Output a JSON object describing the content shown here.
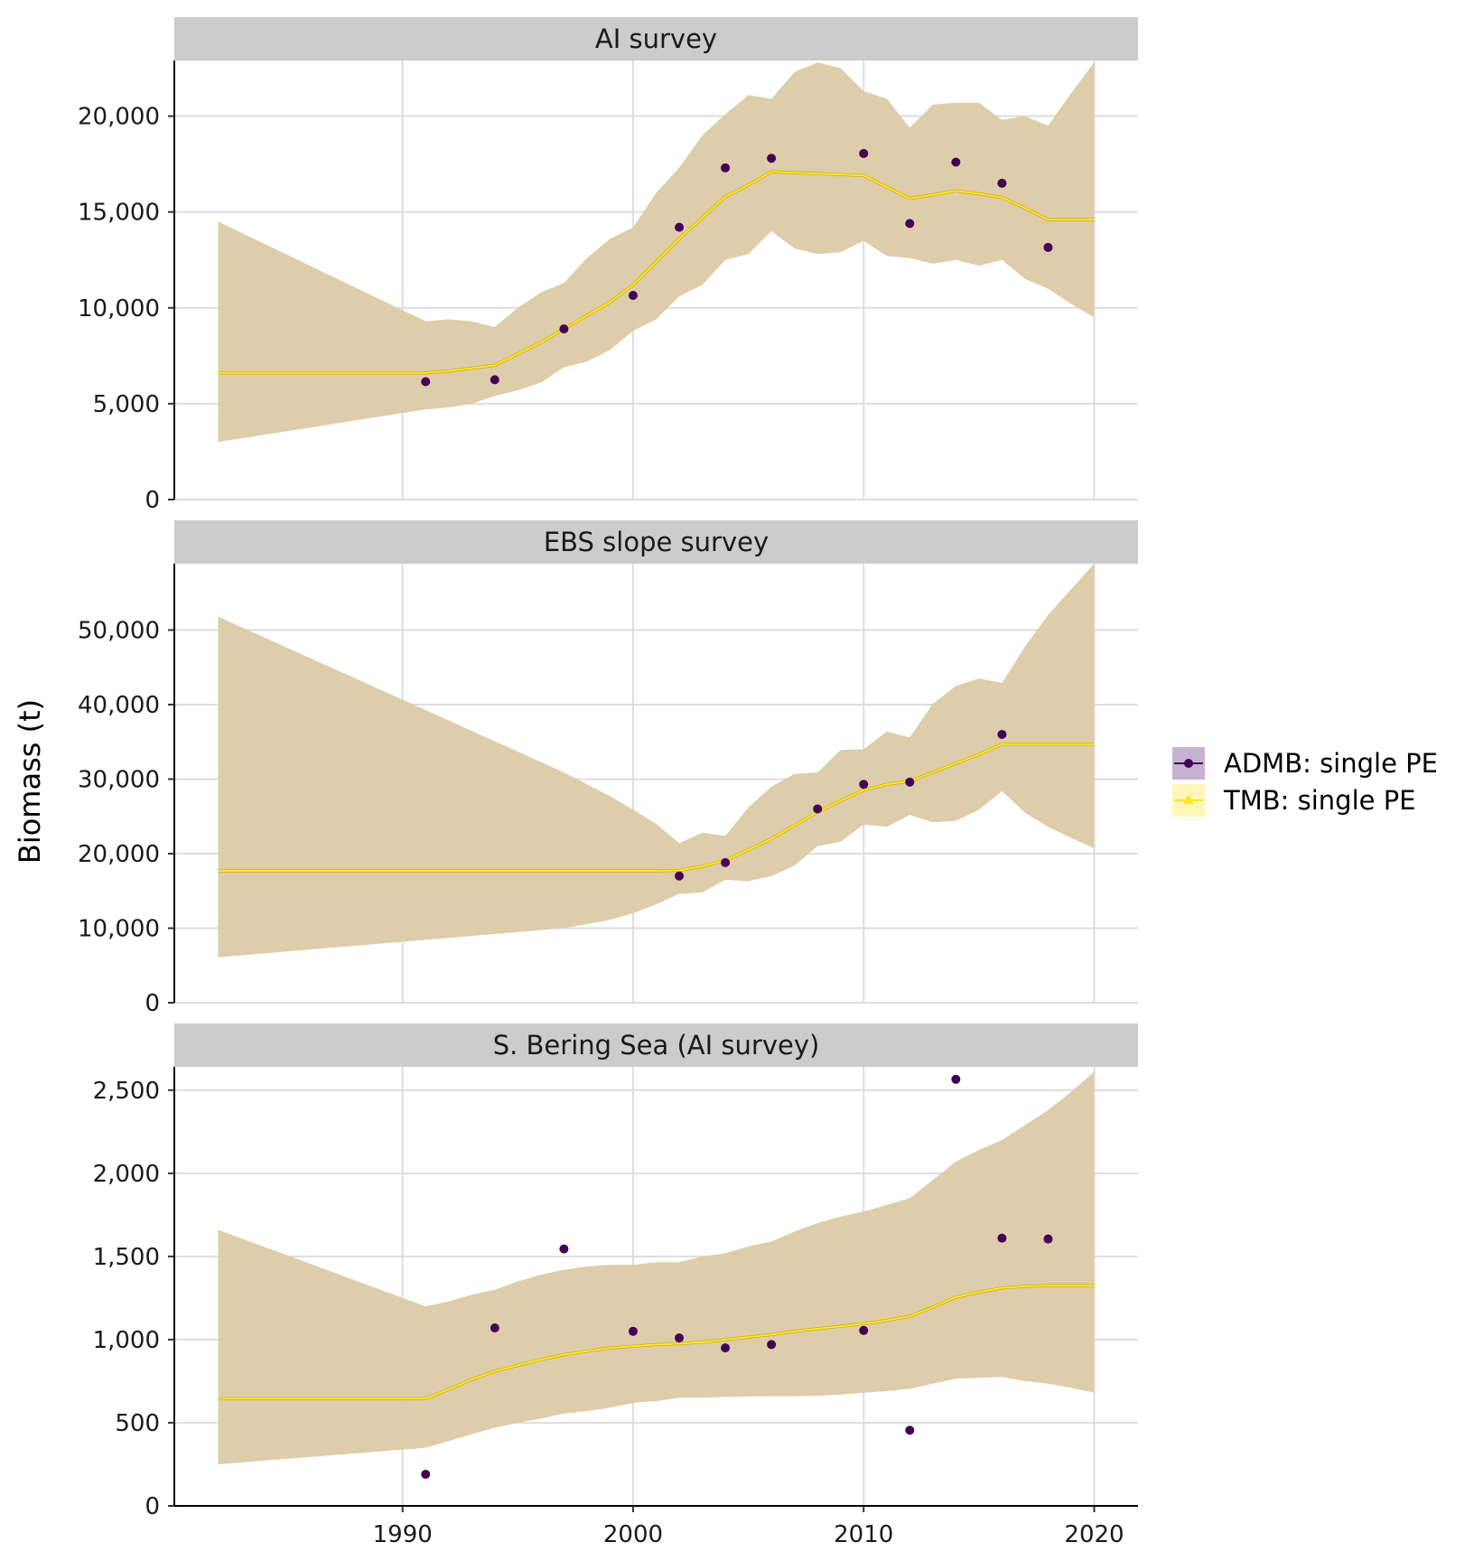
{
  "chart_data": {
    "type": "line",
    "ylabel": "Biomass (t)",
    "xlabel": "",
    "x_ticks": [
      1990,
      2000,
      2010,
      2020
    ],
    "x_tick_labels": [
      "1990",
      "2000",
      "2010",
      "2020"
    ],
    "xlim": [
      1980.1,
      2021.9
    ],
    "grid": true,
    "legend_position": "right",
    "legend": [
      {
        "name": "ADMB: single PE",
        "marker": "point",
        "line_color": "#440154",
        "fill_color": "#c7b3cf"
      },
      {
        "name": "TMB: single PE",
        "marker": "triangle",
        "line_color": "#fde725",
        "fill_color": "#fdf6b8"
      }
    ],
    "colors": {
      "admb": "#440154",
      "tmb": "#fde725",
      "ribbon": "#dccaa6",
      "strip_bg": "#cccccc",
      "grid": "#dedede"
    },
    "panels": [
      {
        "title": "AI survey",
        "ylim": [
          0,
          22900
        ],
        "y_ticks": [
          0,
          5000,
          10000,
          15000,
          20000
        ],
        "y_tick_labels": [
          "0",
          "5,000",
          "10,000",
          "15,000",
          "20,000"
        ],
        "ribbon": {
          "x": [
            1982,
            1991,
            1992,
            1993,
            1994,
            1995,
            1996,
            1997,
            1998,
            1999,
            2000,
            2001,
            2002,
            2003,
            2004,
            2005,
            2006,
            2007,
            2008,
            2009,
            2010,
            2011,
            2012,
            2013,
            2014,
            2015,
            2016,
            2017,
            2018,
            2019,
            2020
          ],
          "lower": [
            3000,
            4700,
            4800,
            5000,
            5400,
            5700,
            6100,
            6900,
            7200,
            7800,
            8800,
            9400,
            10600,
            11200,
            12500,
            12800,
            14000,
            13100,
            12800,
            12900,
            13500,
            12700,
            12600,
            12300,
            12500,
            12200,
            12500,
            11500,
            11000,
            10200,
            9500
          ],
          "upper": [
            14500,
            9300,
            9400,
            9300,
            9000,
            10000,
            10800,
            11300,
            12600,
            13600,
            14200,
            16000,
            17300,
            19000,
            20100,
            21100,
            20900,
            22300,
            22800,
            22500,
            21300,
            20900,
            19400,
            20600,
            20700,
            20700,
            19800,
            20000,
            19500,
            21200,
            22800
          ]
        },
        "line": {
          "x": [
            1982,
            1991,
            1992,
            1993,
            1994,
            1995,
            1996,
            1997,
            1998,
            1999,
            2000,
            2001,
            2002,
            2003,
            2004,
            2005,
            2006,
            2007,
            2008,
            2009,
            2010,
            2011,
            2012,
            2013,
            2014,
            2015,
            2016,
            2017,
            2018,
            2019,
            2020
          ],
          "y": [
            6600,
            6600,
            6700,
            6850,
            7000,
            7600,
            8200,
            8900,
            9600,
            10300,
            11200,
            12400,
            13600,
            14700,
            15800,
            16400,
            17100,
            17050,
            17000,
            16950,
            16900,
            16300,
            15700,
            15900,
            16100,
            15950,
            15750,
            15200,
            14600,
            14600,
            14600
          ]
        },
        "points": {
          "x": [
            1991,
            1994,
            1997,
            2000,
            2002,
            2004,
            2006,
            2010,
            2012,
            2014,
            2016,
            2018
          ],
          "y": [
            6150,
            6250,
            8900,
            10650,
            14200,
            17300,
            17800,
            18050,
            14400,
            17600,
            16500,
            13150
          ]
        }
      },
      {
        "title": "EBS slope survey",
        "ylim": [
          0,
          58900
        ],
        "y_ticks": [
          0,
          10000,
          20000,
          30000,
          40000,
          50000
        ],
        "y_tick_labels": [
          "0",
          "10,000",
          "20,000",
          "30,000",
          "40,000",
          "50,000"
        ],
        "ribbon": {
          "x": [
            1982,
            1997,
            1999,
            2000,
            2001,
            2002,
            2003,
            2004,
            2005,
            2006,
            2007,
            2008,
            2009,
            2010,
            2011,
            2012,
            2013,
            2014,
            2015,
            2016,
            2017,
            2018,
            2019,
            2020
          ],
          "lower": [
            6100,
            10000,
            11100,
            12000,
            13200,
            14600,
            14800,
            16500,
            16300,
            17000,
            18400,
            21000,
            21600,
            23900,
            23600,
            25200,
            24200,
            24400,
            25900,
            28400,
            25500,
            23600,
            22100,
            20700
          ],
          "upper": [
            51800,
            30900,
            27700,
            25900,
            24000,
            21400,
            22800,
            22400,
            26200,
            29000,
            30700,
            30900,
            33900,
            34000,
            36400,
            35600,
            40100,
            42500,
            43500,
            42900,
            47800,
            52000,
            55500,
            58900
          ]
        },
        "line": {
          "x": [
            1982,
            2001,
            2002,
            2003,
            2004,
            2005,
            2006,
            2007,
            2008,
            2009,
            2010,
            2011,
            2012,
            2013,
            2014,
            2015,
            2016,
            2017,
            2018,
            2019,
            2020
          ],
          "y": [
            17700,
            17700,
            17750,
            18300,
            19100,
            20500,
            22000,
            23800,
            25600,
            27100,
            28500,
            29300,
            29700,
            30900,
            32100,
            33300,
            34700,
            34700,
            34700,
            34700,
            34700
          ]
        },
        "points": {
          "x": [
            2002,
            2004,
            2008,
            2010,
            2012,
            2016
          ],
          "y": [
            17000,
            18800,
            26000,
            29300,
            29600,
            36000
          ]
        }
      },
      {
        "title": "S. Bering Sea (AI survey)",
        "ylim": [
          0,
          2640
        ],
        "y_ticks": [
          0,
          500,
          1000,
          1500,
          2000,
          2500
        ],
        "y_tick_labels": [
          "0",
          "500",
          "1,000",
          "1,500",
          "2,000",
          "2,500"
        ],
        "ribbon": {
          "x": [
            1982,
            1991,
            1992,
            1993,
            1994,
            1995,
            1996,
            1997,
            1998,
            1999,
            2000,
            2001,
            2002,
            2003,
            2004,
            2005,
            2006,
            2007,
            2008,
            2009,
            2010,
            2011,
            2012,
            2013,
            2014,
            2015,
            2016,
            2017,
            2018,
            2019,
            2020
          ],
          "lower": [
            250,
            350,
            390,
            430,
            470,
            500,
            525,
            555,
            570,
            590,
            620,
            630,
            650,
            650,
            655,
            658,
            660,
            660,
            662,
            670,
            680,
            690,
            705,
            735,
            765,
            770,
            775,
            750,
            735,
            710,
            680
          ],
          "upper": [
            1660,
            1200,
            1230,
            1270,
            1300,
            1350,
            1390,
            1420,
            1440,
            1450,
            1450,
            1465,
            1465,
            1500,
            1520,
            1560,
            1590,
            1650,
            1700,
            1740,
            1770,
            1810,
            1850,
            1960,
            2070,
            2140,
            2200,
            2290,
            2380,
            2490,
            2610
          ]
        },
        "line": {
          "x": [
            1982,
            1991,
            1992,
            1993,
            1994,
            1995,
            1996,
            1997,
            1998,
            1999,
            2000,
            2001,
            2002,
            2003,
            2004,
            2005,
            2006,
            2007,
            2008,
            2009,
            2010,
            2011,
            2012,
            2013,
            2014,
            2015,
            2016,
            2017,
            2018,
            2019,
            2020
          ],
          "y": [
            645,
            645,
            700,
            760,
            810,
            845,
            880,
            910,
            930,
            950,
            960,
            970,
            975,
            985,
            1000,
            1015,
            1030,
            1050,
            1065,
            1080,
            1095,
            1115,
            1140,
            1195,
            1255,
            1285,
            1310,
            1320,
            1325,
            1325,
            1325
          ]
        },
        "points": {
          "x": [
            1991,
            1994,
            1997,
            2000,
            2002,
            2004,
            2006,
            2010,
            2012,
            2014,
            2016,
            2018
          ],
          "y": [
            190,
            1070,
            1545,
            1050,
            1010,
            950,
            970,
            1055,
            455,
            2565,
            1610,
            1605
          ]
        }
      }
    ]
  }
}
